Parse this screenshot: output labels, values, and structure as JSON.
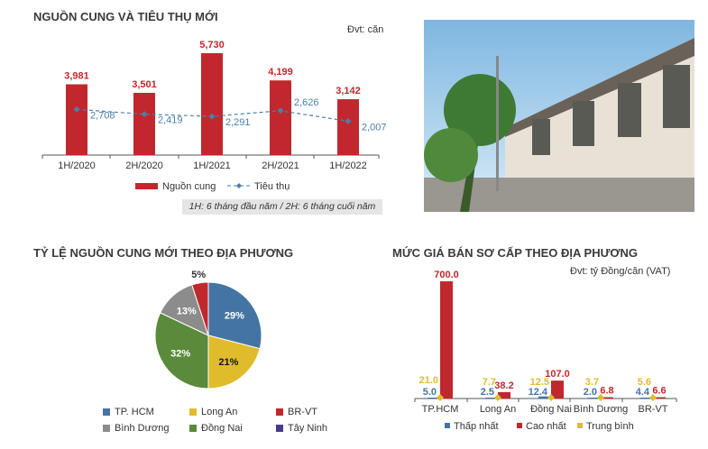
{
  "chart_data": [
    {
      "type": "bar",
      "title": "NGUỒN CUNG VÀ TIÊU THỤ MỚI",
      "unit": "Đvt: căn",
      "categories": [
        "1H/2020",
        "2H/2020",
        "1H/2021",
        "2H/2021",
        "1H/2022"
      ],
      "series": [
        {
          "name": "Nguồn cung",
          "kind": "bar",
          "color": "#c0282d",
          "values": [
            3981,
            3501,
            5730,
            4199,
            3142
          ],
          "labels": [
            "3,981",
            "3,501",
            "5,730",
            "4,199",
            "3,142"
          ]
        },
        {
          "name": "Tiêu thụ",
          "kind": "line",
          "color": "#4a7fa8",
          "values": [
            2708,
            2419,
            2291,
            2626,
            2007
          ],
          "labels": [
            "2,708",
            "2,419",
            "2,291",
            "2,626",
            "2,007"
          ]
        }
      ],
      "note": "1H: 6 tháng đầu năm / 2H: 6 tháng cuối năm"
    },
    {
      "type": "pie",
      "title": "TỶ LỆ NGUỒN CUNG MỚI THEO ĐỊA PHƯƠNG",
      "slices": [
        {
          "name": "TP. HCM",
          "value": 29,
          "color": "#4474a4"
        },
        {
          "name": "Long An",
          "value": 21,
          "color": "#e0bc2c"
        },
        {
          "name": "Đồng Nai",
          "value": 32,
          "color": "#5a8a3a"
        },
        {
          "name": "Bình Dương",
          "value": 13,
          "color": "#8c8c8c"
        },
        {
          "name": "BR-VT",
          "value": 5,
          "color": "#c0282d"
        },
        {
          "name": "Tây Ninh",
          "value": 0,
          "color": "#4a3a8a"
        }
      ],
      "legend_order": [
        "TP. HCM",
        "Long An",
        "BR-VT",
        "Bình Dương",
        "Đồng Nai",
        "Tây Ninh"
      ]
    },
    {
      "type": "bar",
      "title": "MỨC GIÁ BÁN SƠ CẤP THEO ĐỊA PHƯƠNG",
      "unit": "Đvt: tỷ Đồng/căn (VAT)",
      "categories": [
        "TP.HCM",
        "Long An",
        "Đồng Nai",
        "Bình Dương",
        "BR-VT"
      ],
      "series": [
        {
          "name": "Thấp nhất",
          "color": "#4474a4",
          "values": [
            5.0,
            2.5,
            12.4,
            2.0,
            4.4
          ]
        },
        {
          "name": "Cao nhất",
          "color": "#c0282d",
          "values": [
            700.0,
            38.2,
            107.0,
            6.8,
            6.6
          ]
        },
        {
          "name": "Trung bình",
          "color": "#e0bc2c",
          "values": [
            21.0,
            7.7,
            12.5,
            3.7,
            5.6
          ]
        }
      ],
      "ylim": [
        0,
        700
      ]
    }
  ]
}
